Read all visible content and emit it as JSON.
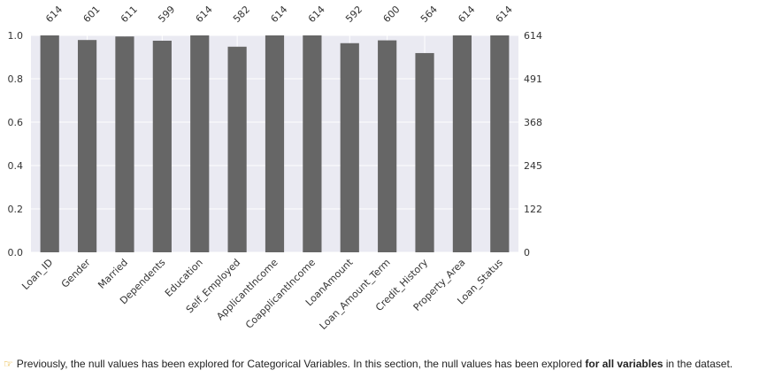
{
  "chart_data": {
    "type": "bar",
    "categories": [
      "Loan_ID",
      "Gender",
      "Married",
      "Dependents",
      "Education",
      "Self_Employed",
      "ApplicantIncome",
      "CoapplicantIncome",
      "LoanAmount",
      "Loan_Amount_Term",
      "Credit_History",
      "Property_Area",
      "Loan_Status"
    ],
    "values": [
      614,
      601,
      611,
      599,
      614,
      582,
      614,
      614,
      592,
      600,
      564,
      614,
      614
    ],
    "total": 614,
    "ylim": [
      0,
      1.0
    ],
    "left_ticks": [
      "0.0",
      "0.2",
      "0.4",
      "0.6",
      "0.8",
      "1.0"
    ],
    "right_ticks": [
      "0",
      "122",
      "245",
      "368",
      "491",
      "614"
    ],
    "grid": true,
    "bar_color": "#666666",
    "background_color": "#eaeaf2"
  },
  "note": {
    "prefix": "Previously, the null values has been explored for Categorical Variables. In this section, the null values has been explored ",
    "bold": "for all variables",
    "suffix": " in the dataset."
  }
}
